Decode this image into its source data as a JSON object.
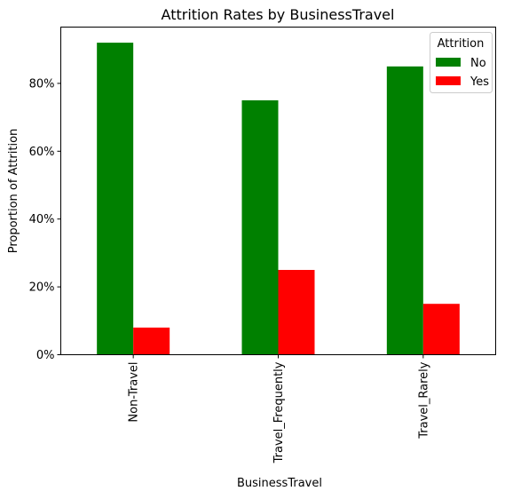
{
  "chart_data": {
    "type": "bar",
    "title": "Attrition Rates by BusinessTravel",
    "xlabel": "BusinessTravel",
    "ylabel": "Proportion of Attrition",
    "categories": [
      "Non-Travel",
      "Travel_Frequently",
      "Travel_Rarely"
    ],
    "series": [
      {
        "name": "No",
        "color": "#008000",
        "values": [
          0.92,
          0.75,
          0.85
        ]
      },
      {
        "name": "Yes",
        "color": "#ff0000",
        "values": [
          0.08,
          0.25,
          0.15
        ]
      }
    ],
    "yticks": [
      0,
      0.2,
      0.4,
      0.6,
      0.8
    ],
    "ytick_labels": [
      "0%",
      "20%",
      "40%",
      "60%",
      "80%"
    ],
    "ylim": [
      0,
      0.966
    ],
    "legend": {
      "title": "Attrition",
      "position": "top-right"
    },
    "grid": false
  }
}
